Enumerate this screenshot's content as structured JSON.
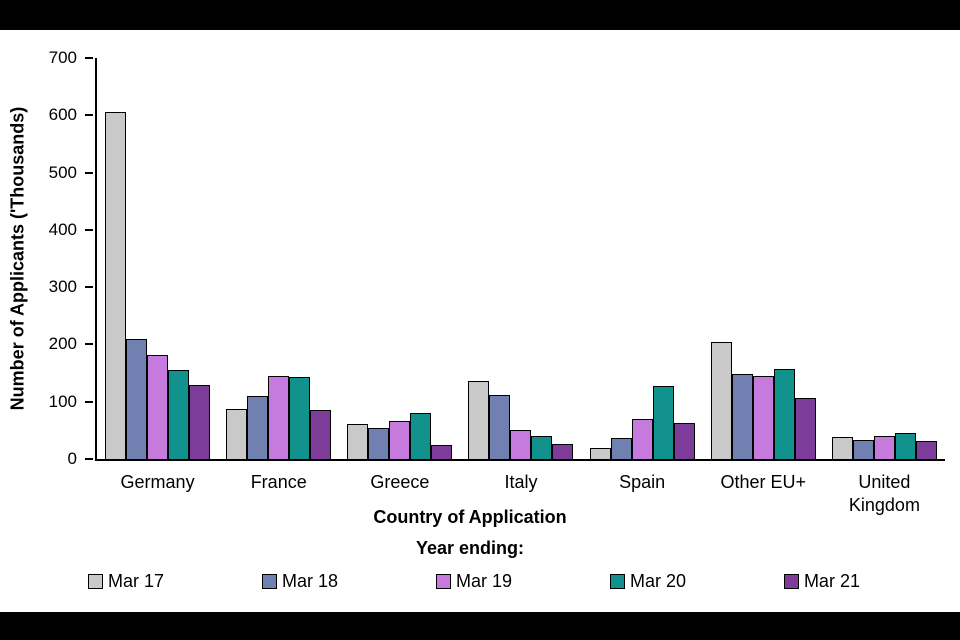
{
  "chart_data": {
    "type": "bar",
    "title": "",
    "ylabel": "Number of Applicants ('Thousands)",
    "xlabel": "Country of Application",
    "legend_title": "Year ending:",
    "ylim": [
      0,
      700
    ],
    "ytick_step": 100,
    "grid": false,
    "legend_position": "bottom",
    "categories": [
      "Germany",
      "France",
      "Greece",
      "Italy",
      "Spain",
      "Other EU+",
      "United Kingdom"
    ],
    "series": [
      {
        "name": "Mar 17",
        "color": "#c9c9c9",
        "values": [
          606,
          88,
          61,
          137,
          19,
          205,
          38
        ]
      },
      {
        "name": "Mar 18",
        "color": "#7081b1",
        "values": [
          210,
          110,
          54,
          111,
          37,
          148,
          33
        ]
      },
      {
        "name": "Mar 19",
        "color": "#c77add",
        "values": [
          181,
          145,
          67,
          50,
          70,
          145,
          41
        ]
      },
      {
        "name": "Mar 20",
        "color": "#12928d",
        "values": [
          156,
          143,
          81,
          41,
          127,
          158,
          45
        ]
      },
      {
        "name": "Mar 21",
        "color": "#7d3c9a",
        "values": [
          130,
          85,
          25,
          27,
          63,
          107,
          32
        ]
      }
    ]
  }
}
